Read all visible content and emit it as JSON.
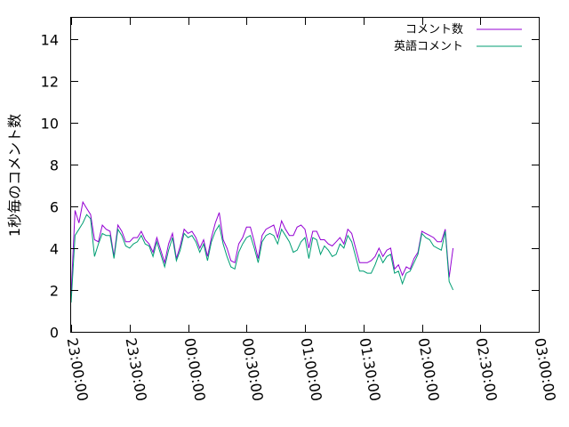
{
  "chart_data": {
    "type": "line",
    "ylabel": "1秒毎のコメント数",
    "xlabel": "",
    "ylim": [
      0,
      15
    ],
    "yticks": [
      0,
      2,
      4,
      6,
      8,
      10,
      12,
      14
    ],
    "xlim": [
      "23:00:00",
      "03:00:00"
    ],
    "xtick_labels": [
      "23:00:00",
      "23:30:00",
      "00:00:00",
      "00:30:00",
      "01:00:00",
      "01:30:00",
      "02:00:00",
      "02:30:00",
      "03:00:00"
    ],
    "x_interval_minutes": 2,
    "x_start": "23:00:00",
    "grid": false,
    "legend_position": "top-right",
    "series": [
      {
        "name": "コメント数",
        "color": "#9400d3",
        "values": [
          1.8,
          5.8,
          5.2,
          6.2,
          5.9,
          5.6,
          4.4,
          4.3,
          5.1,
          4.9,
          4.8,
          3.6,
          5.1,
          4.8,
          4.3,
          4.3,
          4.5,
          4.5,
          4.8,
          4.4,
          4.2,
          3.8,
          4.5,
          3.9,
          3.3,
          4.2,
          4.7,
          3.5,
          4.1,
          4.9,
          4.7,
          4.8,
          4.5,
          4.0,
          4.4,
          3.6,
          4.5,
          5.2,
          5.7,
          4.4,
          4.0,
          3.4,
          3.3,
          4.2,
          4.5,
          5.0,
          5.0,
          4.3,
          3.5,
          4.6,
          4.9,
          5.0,
          5.1,
          4.5,
          5.3,
          4.9,
          4.6,
          4.6,
          5.0,
          5.1,
          4.9,
          4.0,
          4.8,
          4.8,
          4.4,
          4.4,
          4.2,
          4.1,
          4.3,
          4.5,
          4.2,
          4.9,
          4.7,
          4.0,
          3.3,
          3.3,
          3.3,
          3.4,
          3.6,
          4.0,
          3.6,
          3.9,
          4.0,
          3.0,
          3.2,
          2.7,
          3.1,
          3.0,
          3.5,
          3.8,
          4.8,
          4.7,
          4.6,
          4.5,
          4.3,
          4.3,
          4.9,
          2.6,
          4.0
        ]
      },
      {
        "name": "英語コメント",
        "color": "#009e73",
        "values": [
          1.4,
          4.6,
          4.9,
          5.2,
          5.6,
          5.4,
          3.6,
          4.2,
          4.7,
          4.6,
          4.6,
          3.5,
          4.9,
          4.6,
          4.1,
          4.0,
          4.2,
          4.3,
          4.6,
          4.2,
          4.1,
          3.6,
          4.3,
          3.7,
          3.1,
          3.9,
          4.5,
          3.4,
          3.9,
          4.7,
          4.5,
          4.6,
          4.3,
          3.8,
          4.2,
          3.4,
          4.3,
          4.8,
          5.1,
          4.2,
          3.6,
          3.1,
          3.0,
          3.8,
          4.2,
          4.5,
          4.6,
          4.0,
          3.3,
          4.3,
          4.6,
          4.7,
          4.6,
          4.2,
          4.9,
          4.6,
          4.3,
          3.8,
          3.9,
          4.3,
          4.5,
          3.5,
          4.5,
          4.4,
          3.7,
          4.1,
          3.9,
          3.6,
          3.7,
          4.2,
          4.0,
          4.6,
          4.3,
          3.6,
          2.9,
          2.9,
          2.8,
          2.8,
          3.2,
          3.7,
          3.3,
          3.6,
          3.7,
          2.8,
          2.9,
          2.3,
          2.8,
          2.9,
          3.3,
          3.7,
          4.7,
          4.5,
          4.4,
          4.1,
          4.0,
          3.9,
          4.8,
          2.4,
          2.0
        ]
      }
    ]
  }
}
